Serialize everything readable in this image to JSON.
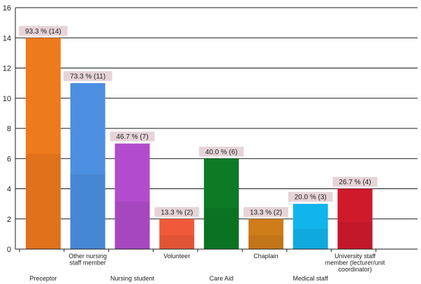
{
  "chart_data": {
    "type": "bar",
    "title": "",
    "xlabel": "",
    "ylabel": "",
    "ylim": [
      0,
      16
    ],
    "yticks": [
      0,
      2,
      4,
      6,
      8,
      10,
      12,
      14,
      16
    ],
    "grid": true,
    "legend": "none",
    "categories": [
      "Preceptor",
      "Other nursing staff member",
      "Nursing student",
      "Volunteer",
      "Care Aid",
      "Chaplain",
      "Medical staff",
      "University staff member (lecturer/unit coordinator)"
    ],
    "category_lines": [
      [
        "Preceptor"
      ],
      [
        "Other nursing",
        "staff member"
      ],
      [
        "Nursing student"
      ],
      [
        "Volunteer"
      ],
      [
        "Care Aid"
      ],
      [
        "Chaplain"
      ],
      [
        "Medical staff"
      ],
      [
        "University staff",
        "member (lecturer/unit",
        "coordinator)"
      ]
    ],
    "values": [
      14,
      11,
      7,
      2,
      6,
      2,
      3,
      4
    ],
    "data_labels": [
      "93.3 % (14)",
      "73.3 % (11)",
      "46.7 % (7)",
      "13.3 % (2)",
      "40.0 % (6)",
      "13.3 % (2)",
      "20.0 % (3)",
      "26.7 % (4)"
    ],
    "colors": [
      "#ee7a1e",
      "#4c8fe0",
      "#b24ccc",
      "#f05a3a",
      "#0d7a26",
      "#cf7c1a",
      "#12b4ec",
      "#cf1a2c"
    ]
  }
}
